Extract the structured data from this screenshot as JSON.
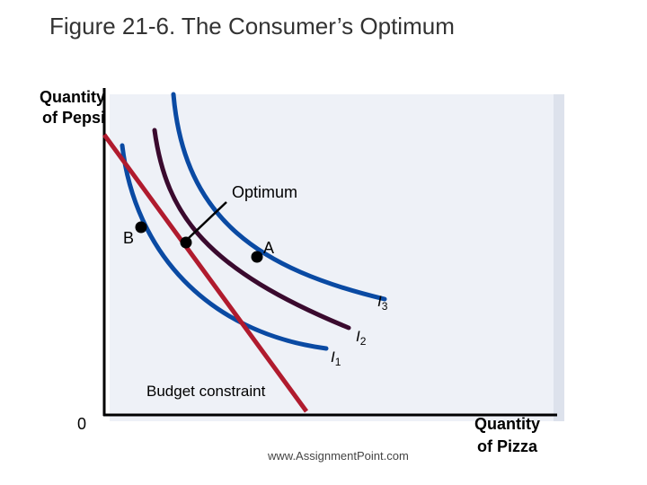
{
  "title": "Figure 21-6. The Consumer’s Optimum",
  "axes": {
    "y_label_line1": "Quantity",
    "y_label_line2": "of Pepsi",
    "x_label_line1": "Quantity",
    "x_label_line2": "of Pizza",
    "origin": "0"
  },
  "labels": {
    "optimum": "Optimum",
    "point_a": "A",
    "point_b": "B",
    "budget_constraint": "Budget constraint"
  },
  "curves": {
    "i1": {
      "letter": "I",
      "sub": "1"
    },
    "i2": {
      "letter": "I",
      "sub": "2"
    },
    "i3": {
      "letter": "I",
      "sub": "3"
    }
  },
  "colors": {
    "indifference_blue": "#0a4aa3",
    "indifference_dark": "#3a0a2e",
    "budget_red": "#b01b2e",
    "axis": "#000000",
    "shadow": "#dde2ec"
  },
  "footer": "www.AssignmentPoint.com"
}
